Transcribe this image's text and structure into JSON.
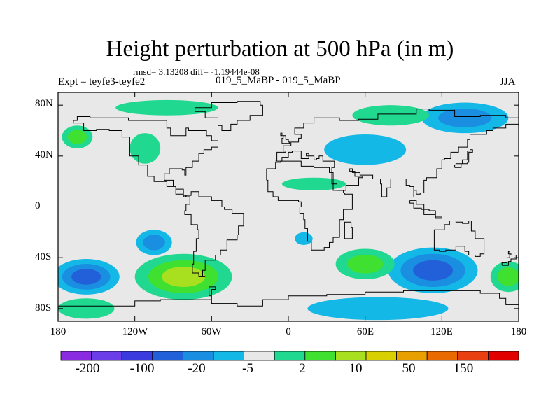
{
  "title": "Height perturbation at 500 hPa (in m)",
  "stats": "rmsd= 3.13208 diff= -1.19444e-08",
  "left_label": "Expt = teyfe3-teyfe2",
  "center_label": "019_5_MaBP - 019_5_MaBP",
  "right_label": "JJA",
  "map": {
    "type": "contour-map",
    "lon_range": [
      -180,
      180
    ],
    "lat_range": [
      -90,
      90
    ],
    "background_color": "#e8e8e8",
    "coastline_color": "#000000",
    "y_tick_labels": [
      "80N",
      "40N",
      "0",
      "40S",
      "80S"
    ],
    "x_tick_labels": [
      "180",
      "120W",
      "60W",
      "0",
      "60E",
      "120E",
      "180"
    ]
  },
  "colorbar": {
    "colors": [
      "#8a2be2",
      "#6a3de8",
      "#3a3adf",
      "#2160d8",
      "#1a8ee0",
      "#14b8e6",
      "#e8e8e8",
      "#20d890",
      "#40e030",
      "#a8e020",
      "#d8d000",
      "#e8a000",
      "#e86a00",
      "#e84010",
      "#e00000"
    ],
    "labels": [
      "-200",
      "-100",
      "-20",
      "-5",
      "2",
      "10",
      "50",
      "150"
    ]
  },
  "fields": [
    {
      "name": "se-pacific-positive",
      "lon": -82,
      "lat": -55,
      "rx": 38,
      "ry": 18,
      "levels": [
        "#20d890",
        "#40e030",
        "#a8e020"
      ]
    },
    {
      "name": "south-pacific-negative",
      "lon": -158,
      "lat": -55,
      "rx": 26,
      "ry": 14,
      "levels": [
        "#14b8e6",
        "#1a8ee0",
        "#2160d8"
      ]
    },
    {
      "name": "indian-negative",
      "lon": 113,
      "lat": -50,
      "rx": 35,
      "ry": 18,
      "levels": [
        "#14b8e6",
        "#1a8ee0",
        "#2160d8"
      ]
    },
    {
      "name": "south-indian-positive",
      "lon": 60,
      "lat": -45,
      "rx": 23,
      "ry": 12,
      "levels": [
        "#20d890",
        "#40e030"
      ]
    },
    {
      "name": "south-atlantic-positive",
      "lon": -158,
      "lat": -80,
      "rx": 22,
      "ry": 8,
      "levels": [
        "#20d890"
      ]
    },
    {
      "name": "east-pacific-positive",
      "lon": 172,
      "lat": -55,
      "rx": 14,
      "ry": 12,
      "levels": [
        "#20d890",
        "#40e030"
      ]
    },
    {
      "name": "antarctic-negative",
      "lon": 70,
      "lat": -80,
      "rx": 55,
      "ry": 9,
      "levels": [
        "#14b8e6"
      ]
    },
    {
      "name": "chile-negative",
      "lon": -105,
      "lat": -28,
      "rx": 14,
      "ry": 10,
      "levels": [
        "#14b8e6",
        "#1a8ee0"
      ]
    },
    {
      "name": "eurasia-negative",
      "lon": 60,
      "lat": 45,
      "rx": 32,
      "ry": 12,
      "levels": [
        "#14b8e6"
      ]
    },
    {
      "name": "arctic-negative",
      "lon": 138,
      "lat": 70,
      "rx": 34,
      "ry": 12,
      "levels": [
        "#14b8e6",
        "#1a8ee0"
      ]
    },
    {
      "name": "siberia-positive",
      "lon": 80,
      "lat": 72,
      "rx": 30,
      "ry": 8,
      "levels": [
        "#20d890"
      ]
    },
    {
      "name": "n-pacific-positive",
      "lon": -165,
      "lat": 55,
      "rx": 12,
      "ry": 9,
      "levels": [
        "#20d890",
        "#40e030"
      ]
    },
    {
      "name": "canada-positive",
      "lon": -95,
      "lat": 78,
      "rx": 40,
      "ry": 6,
      "levels": [
        "#20d890"
      ]
    },
    {
      "name": "n-america-positive",
      "lon": -112,
      "lat": 46,
      "rx": 12,
      "ry": 12,
      "levels": [
        "#20d890"
      ]
    },
    {
      "name": "sahara-positive",
      "lon": 20,
      "lat": 18,
      "rx": 25,
      "ry": 5,
      "levels": [
        "#20d890"
      ]
    },
    {
      "name": "south-africa-negative",
      "lon": 12,
      "lat": -25,
      "rx": 7,
      "ry": 5,
      "levels": [
        "#14b8e6"
      ]
    }
  ]
}
